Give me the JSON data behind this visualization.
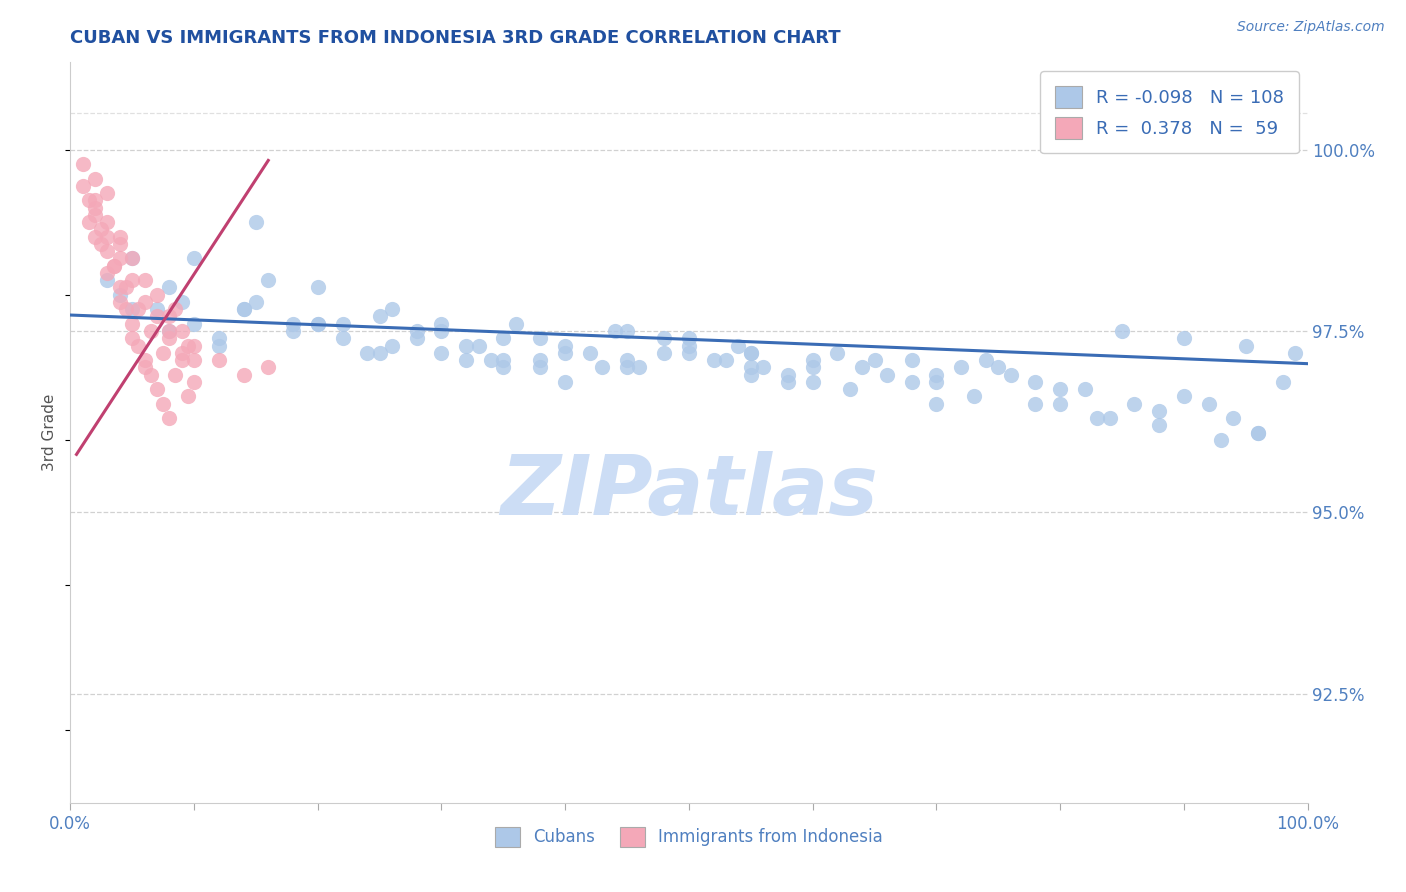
{
  "title": "CUBAN VS IMMIGRANTS FROM INDONESIA 3RD GRADE CORRELATION CHART",
  "source_text": "Source: ZipAtlas.com",
  "ylabel": "3rd Grade",
  "xlim": [
    0.0,
    100.0
  ],
  "ylim": [
    91.0,
    101.2
  ],
  "yright_ticks": [
    92.5,
    95.0,
    97.5,
    100.0
  ],
  "yright_tick_labels": [
    "92.5%",
    "95.0%",
    "97.5%",
    "100.0%"
  ],
  "blue_fill": "#adc8e8",
  "pink_fill": "#f4a8b8",
  "blue_line": "#3a6cb5",
  "pink_line": "#c04070",
  "legend_R_blue": "-0.098",
  "legend_N_blue": "108",
  "legend_R_pink": "0.378",
  "legend_N_pink": "59",
  "legend_text_color": "#3a6cb5",
  "watermark": "ZIPatlas",
  "watermark_color": "#ccddf5",
  "grid_color": "#cccccc",
  "title_color": "#2050a0",
  "axis_tick_color": "#5080c0",
  "ylabel_color": "#555555",
  "blue_scatter_x": [
    3,
    4,
    5,
    7,
    8,
    9,
    10,
    12,
    14,
    15,
    16,
    18,
    20,
    22,
    24,
    26,
    28,
    30,
    32,
    34,
    36,
    38,
    40,
    42,
    44,
    46,
    48,
    50,
    52,
    54,
    56,
    58,
    60,
    62,
    64,
    66,
    68,
    70,
    72,
    74,
    76,
    78,
    80,
    82,
    84,
    86,
    88,
    90,
    92,
    94,
    96,
    98,
    10,
    15,
    20,
    25,
    30,
    35,
    40,
    45,
    50,
    55,
    60,
    65,
    70,
    5,
    8,
    12,
    18,
    22,
    28,
    33,
    38,
    43,
    48,
    53,
    58,
    63,
    68,
    73,
    78,
    83,
    88,
    93,
    96,
    14,
    20,
    30,
    35,
    40,
    45,
    55,
    70,
    75,
    80,
    85,
    90,
    95,
    99,
    50,
    55,
    60,
    26,
    32,
    38,
    25,
    35,
    45,
    55
  ],
  "blue_scatter_y": [
    98.2,
    98.0,
    98.5,
    97.8,
    98.1,
    97.9,
    97.6,
    97.4,
    97.8,
    99.0,
    98.2,
    97.5,
    97.6,
    97.6,
    97.2,
    97.8,
    97.4,
    97.5,
    97.3,
    97.1,
    97.6,
    97.4,
    97.3,
    97.2,
    97.5,
    97.0,
    97.4,
    97.2,
    97.1,
    97.3,
    97.0,
    96.8,
    97.1,
    97.2,
    97.0,
    96.9,
    97.1,
    96.8,
    97.0,
    97.1,
    96.9,
    96.8,
    96.5,
    96.7,
    96.3,
    96.5,
    96.4,
    96.6,
    96.5,
    96.3,
    96.1,
    96.8,
    98.5,
    97.9,
    98.1,
    97.7,
    97.6,
    97.4,
    97.2,
    97.5,
    97.3,
    97.0,
    96.8,
    97.1,
    96.9,
    97.8,
    97.5,
    97.3,
    97.6,
    97.4,
    97.5,
    97.3,
    97.1,
    97.0,
    97.2,
    97.1,
    96.9,
    96.7,
    96.8,
    96.6,
    96.5,
    96.3,
    96.2,
    96.0,
    96.1,
    97.8,
    97.6,
    97.2,
    97.0,
    96.8,
    97.1,
    96.9,
    96.5,
    97.0,
    96.7,
    97.5,
    97.4,
    97.3,
    97.2,
    97.4,
    97.2,
    97.0,
    97.3,
    97.1,
    97.0,
    97.2,
    97.1,
    97.0,
    97.2
  ],
  "pink_scatter_x": [
    1,
    1,
    1.5,
    2,
    2,
    2,
    2.5,
    3,
    3,
    3,
    3.5,
    4,
    4,
    4,
    4.5,
    5,
    5,
    5,
    5.5,
    6,
    6,
    6,
    6.5,
    7,
    7,
    7.5,
    8,
    8,
    8,
    8.5,
    9,
    9,
    9.5,
    10,
    10,
    12,
    14,
    16,
    2,
    3,
    4,
    5,
    6,
    7,
    8,
    9,
    10,
    1.5,
    2.5,
    3.5,
    4.5,
    5.5,
    6.5,
    7.5,
    8.5,
    9.5,
    2,
    3,
    4
  ],
  "pink_scatter_y": [
    99.5,
    99.8,
    99.3,
    99.2,
    98.8,
    99.6,
    98.9,
    98.6,
    98.3,
    99.4,
    98.4,
    98.1,
    97.9,
    98.7,
    97.8,
    97.6,
    97.4,
    98.5,
    97.3,
    97.1,
    97.0,
    98.2,
    96.9,
    96.7,
    98.0,
    96.5,
    96.3,
    97.5,
    97.7,
    97.8,
    97.2,
    97.5,
    97.3,
    97.1,
    97.3,
    97.1,
    96.9,
    97.0,
    99.1,
    98.8,
    98.5,
    98.2,
    97.9,
    97.7,
    97.4,
    97.1,
    96.8,
    99.0,
    98.7,
    98.4,
    98.1,
    97.8,
    97.5,
    97.2,
    96.9,
    96.6,
    99.3,
    99.0,
    98.8
  ],
  "blue_trend_x0": 0.0,
  "blue_trend_x1": 100.0,
  "blue_trend_y0": 97.72,
  "blue_trend_y1": 97.05,
  "pink_trend_x0": 0.5,
  "pink_trend_x1": 16.0,
  "pink_trend_y0": 95.8,
  "pink_trend_y1": 99.85,
  "xtick_positions": [
    0,
    10,
    20,
    30,
    40,
    50,
    60,
    70,
    80,
    90,
    100
  ]
}
